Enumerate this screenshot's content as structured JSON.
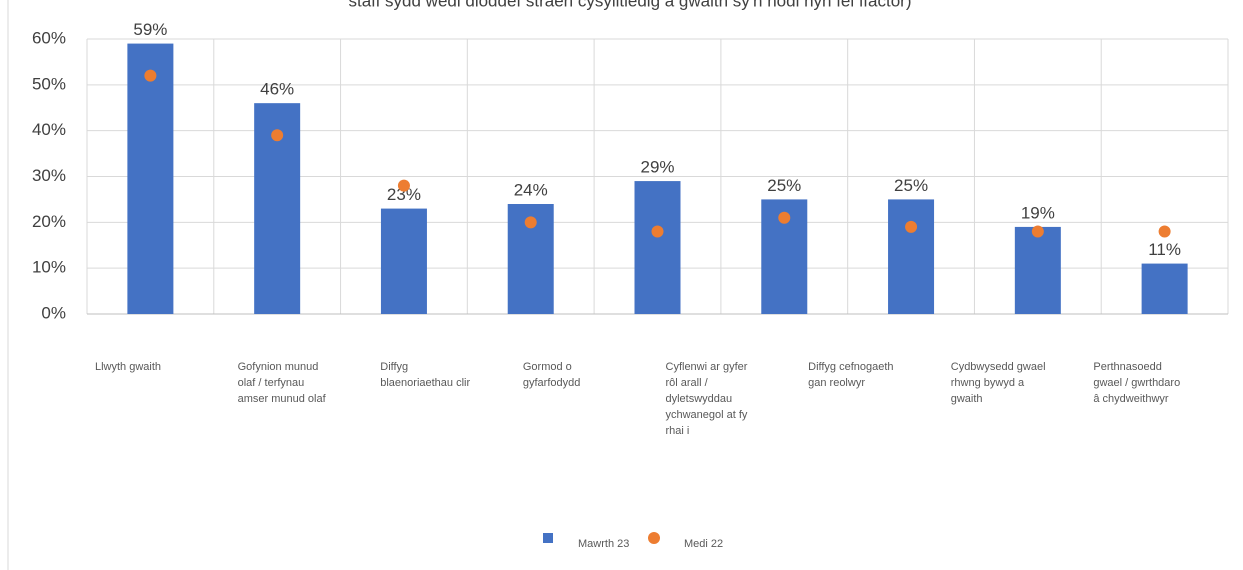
{
  "chart_data": {
    "type": "bar",
    "title": "staff sydd wedi dioddef straen cysylltiedig â gwaith sy'n nodi hyn fel ffactor)",
    "categories": [
      "Llwyth gwaith",
      "Gofynion munud olaf / terfynau amser munud olaf",
      "Diffyg blaenoriaethau clir",
      "Gormod o gyfarfodydd",
      "Cyflenwi ar gyfer rôl arall / dyletswyddau ychwanegol at fy rhai i",
      "Diffyg cefnogaeth gan reolwyr",
      "Cydbwysedd gwael rhwng bywyd a gwaith",
      "Perthnasoedd gwael / gwrthdaro â chydweithwyr",
      null
    ],
    "series": [
      {
        "name": "Mawrth 23",
        "color": "#4472c4",
        "mark": "bar",
        "values": [
          59,
          46,
          23,
          24,
          29,
          25,
          25,
          19,
          11
        ],
        "value_labels": [
          "59%",
          "46%",
          "23%",
          "24%",
          "29%",
          "25%",
          "25%",
          "19%",
          "11%"
        ]
      },
      {
        "name": "Medi 22",
        "color": "#ed7d31",
        "mark": "dot",
        "values": [
          52,
          39,
          28,
          20,
          18,
          21,
          19,
          18,
          18
        ]
      }
    ],
    "ylim": [
      0,
      60
    ],
    "yticks": [
      {
        "value": 0,
        "label": "0%"
      },
      {
        "value": 10,
        "label": "10%"
      },
      {
        "value": 20,
        "label": "20%"
      },
      {
        "value": 30,
        "label": "30%"
      },
      {
        "value": 40,
        "label": "40%"
      },
      {
        "value": 50,
        "label": "50%"
      },
      {
        "value": 60,
        "label": "60%"
      }
    ],
    "grid": true
  }
}
